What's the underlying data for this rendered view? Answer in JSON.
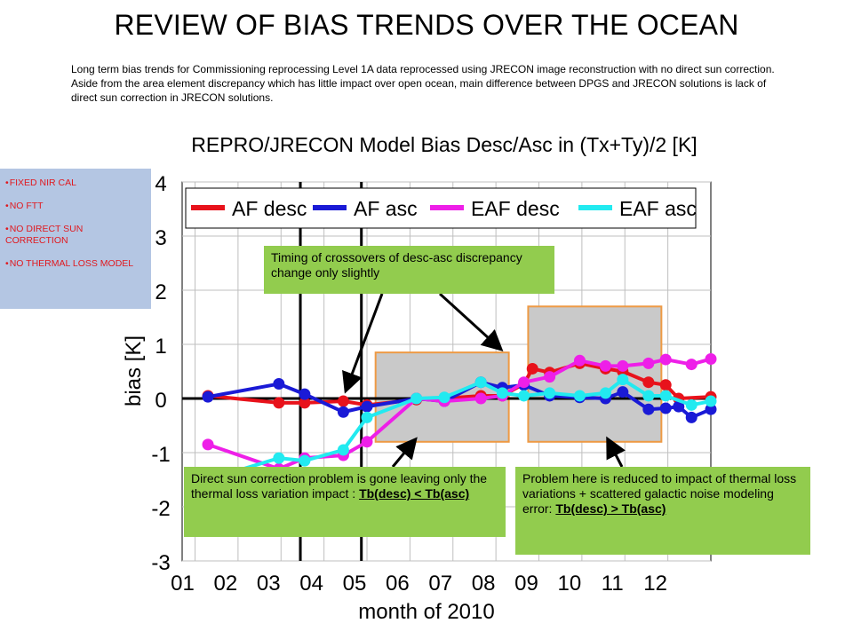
{
  "slide_title": "REVIEW OF BIAS TRENDS OVER THE OCEAN",
  "intro_text": "Long term bias trends for Commissioning reprocessing Level 1A data reprocessed using JRECON image reconstruction with no direct sun correction. Aside from the area element discrepancy which has little impact over open ocean, main difference between DPGS and JRECON solutions is lack of direct sun correction in JRECON solutions.",
  "side_notes": [
    "FIXED NIR CAL",
    "NO FTT",
    "NO DIRECT SUN CORRECTION",
    "NO THERMAL LOSS MODEL"
  ],
  "callouts": {
    "timing": "Timing of crossovers of desc-asc discrepancy change only slightly",
    "sun_text": "Direct sun correction problem is gone leaving only the thermal loss variation impact :",
    "sun_em": "Tb(desc) < Tb(asc)",
    "loss_text": "Problem here is reduced to impact of thermal loss variations + scattered galactic noise modeling error:",
    "loss_em": "Tb(desc) > Tb(asc)"
  },
  "colors": {
    "af_desc": "#e8121b",
    "af_asc": "#1a1ad6",
    "eaf_desc": "#ee1fe8",
    "eaf_asc": "#22eaf0",
    "callout": "#92cc4e",
    "highlight_fill": "#c9c9c9",
    "highlight_border": "#ee9a44",
    "side_box": "#b4c6e3"
  },
  "chart_data": {
    "type": "line",
    "title": "REPRO/JRECON Model Bias Desc/Asc in (Tx+Ty)/2 [K]",
    "xlabel": "month of 2010",
    "ylabel": "bias [K]",
    "xlim": [
      0.7,
      13.0
    ],
    "ylim": [
      -3,
      4
    ],
    "xticks": [
      1,
      2,
      3,
      4,
      5,
      6,
      7,
      8,
      9,
      10,
      11,
      12
    ],
    "xtick_labels": [
      "01",
      "02",
      "03",
      "04",
      "05",
      "06",
      "07",
      "08",
      "09",
      "10",
      "11",
      "12"
    ],
    "yticks": [
      -3,
      -2,
      -1,
      0,
      1,
      2,
      3,
      4
    ],
    "ytick_labels": [
      "-3",
      "-2",
      "-1",
      "0",
      "1",
      "2",
      "3",
      "4"
    ],
    "grid": true,
    "legend_position": "top",
    "vertical_lines": [
      3.45,
      4.87
    ],
    "highlight_ranges": [
      {
        "x": [
          5.2,
          8.3
        ],
        "y": [
          -0.8,
          0.85
        ]
      },
      {
        "x": [
          8.75,
          11.85
        ],
        "y": [
          -0.8,
          1.7
        ]
      }
    ],
    "series": [
      {
        "name": "AF desc",
        "color": "#e8121b",
        "x": [
          1.3,
          2.95,
          3.55,
          4.45,
          5.0,
          6.15,
          6.8,
          7.65,
          8.15,
          8.65,
          8.85,
          9.25,
          9.95,
          10.55,
          10.95,
          11.55,
          11.95,
          12.25,
          13.0
        ],
        "y": [
          0.05,
          -0.08,
          -0.08,
          -0.05,
          -0.12,
          -0.02,
          0.0,
          0.05,
          0.05,
          0.27,
          0.55,
          0.48,
          0.65,
          0.55,
          0.5,
          0.3,
          0.25,
          0.0,
          0.03
        ]
      },
      {
        "name": "AF asc",
        "color": "#1a1ad6",
        "x": [
          1.3,
          2.95,
          3.55,
          4.45,
          5.0,
          6.15,
          6.8,
          7.65,
          8.15,
          8.65,
          9.25,
          9.95,
          10.55,
          10.95,
          11.55,
          11.95,
          12.25,
          12.55,
          13.0
        ],
        "y": [
          0.03,
          0.27,
          0.08,
          -0.25,
          -0.15,
          0.0,
          -0.05,
          0.3,
          0.2,
          0.25,
          0.05,
          0.02,
          0.0,
          0.12,
          -0.2,
          -0.18,
          -0.15,
          -0.35,
          -0.2
        ]
      },
      {
        "name": "EAF desc",
        "color": "#ee1fe8",
        "x": [
          1.3,
          2.95,
          3.55,
          4.45,
          5.0,
          6.15,
          6.8,
          7.65,
          8.15,
          8.65,
          9.25,
          9.95,
          10.55,
          10.95,
          11.55,
          11.95,
          12.55,
          13.0
        ],
        "y": [
          -0.85,
          -1.3,
          -1.1,
          -1.05,
          -0.8,
          0.0,
          -0.05,
          0.0,
          0.05,
          0.3,
          0.4,
          0.7,
          0.6,
          0.6,
          0.65,
          0.72,
          0.63,
          0.73
        ]
      },
      {
        "name": "EAF asc",
        "color": "#22eaf0",
        "x": [
          1.3,
          2.95,
          3.55,
          4.45,
          5.0,
          6.15,
          6.8,
          7.65,
          8.15,
          8.65,
          9.25,
          9.95,
          10.55,
          10.95,
          11.55,
          11.95,
          12.55,
          13.0
        ],
        "y": [
          -1.5,
          -1.1,
          -1.15,
          -0.95,
          -0.35,
          0.0,
          0.02,
          0.3,
          0.1,
          0.05,
          0.1,
          0.05,
          0.1,
          0.35,
          0.05,
          0.05,
          -0.12,
          -0.05
        ]
      }
    ]
  }
}
